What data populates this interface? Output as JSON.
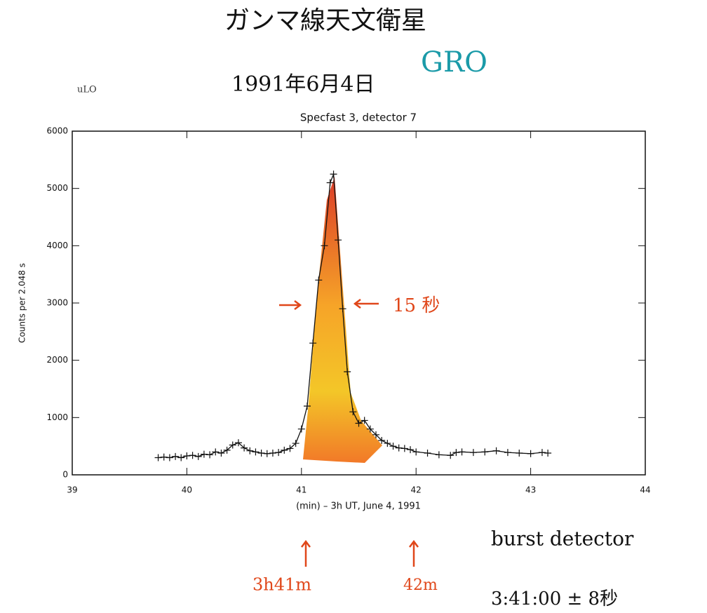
{
  "chart_data": {
    "type": "line",
    "title": "Specfast 3, detector 7",
    "x_label": "(min) – 3h UT, June 4, 1991",
    "y_label": "Counts per 2.048 s",
    "xlim": [
      39,
      44
    ],
    "ylim": [
      0,
      6000
    ],
    "xticks": [
      39,
      40,
      41,
      42,
      43,
      44
    ],
    "yticks": [
      0,
      1000,
      2000,
      3000,
      4000,
      5000,
      6000
    ],
    "color": "#111111",
    "x": [
      39.75,
      39.8,
      39.85,
      39.9,
      39.95,
      40.0,
      40.05,
      40.1,
      40.15,
      40.2,
      40.25,
      40.3,
      40.35,
      40.4,
      40.45,
      40.5,
      40.55,
      40.6,
      40.65,
      40.7,
      40.75,
      40.8,
      40.85,
      40.9,
      40.95,
      41.0,
      41.05,
      41.1,
      41.15,
      41.2,
      41.25,
      41.28,
      41.32,
      41.36,
      41.4,
      41.45,
      41.5,
      41.55,
      41.6,
      41.65,
      41.7,
      41.75,
      41.8,
      41.85,
      41.9,
      41.95,
      42.0,
      42.1,
      42.2,
      42.3,
      42.35,
      42.4,
      42.5,
      42.6,
      42.7,
      42.8,
      42.9,
      43.0,
      43.1,
      43.15
    ],
    "values": [
      300,
      310,
      300,
      320,
      300,
      330,
      340,
      320,
      360,
      350,
      400,
      380,
      430,
      520,
      560,
      470,
      420,
      400,
      380,
      370,
      380,
      390,
      430,
      460,
      550,
      800,
      1200,
      2300,
      3400,
      4000,
      5100,
      5250,
      4100,
      2900,
      1800,
      1100,
      900,
      950,
      800,
      700,
      600,
      550,
      500,
      470,
      460,
      440,
      400,
      380,
      350,
      340,
      390,
      400,
      390,
      400,
      420,
      390,
      380,
      370,
      390,
      380
    ],
    "annotations": [
      {
        "text": "ガンマ線天文衛星",
        "color": "#111111"
      },
      {
        "text": "1991年6月4日",
        "color": "#111111"
      },
      {
        "text": "GRO",
        "color": "#1a9aa8"
      },
      {
        "text": "uLO",
        "color": "#333333"
      },
      {
        "text": "15 秒",
        "color": "#e0471a"
      },
      {
        "text": "3h41m",
        "color": "#e0471a"
      },
      {
        "text": "42m",
        "color": "#e0471a"
      },
      {
        "text": "burst detector",
        "color": "#111111"
      },
      {
        "text": "3:41:00 ± 8秒",
        "color": "#111111"
      }
    ]
  }
}
